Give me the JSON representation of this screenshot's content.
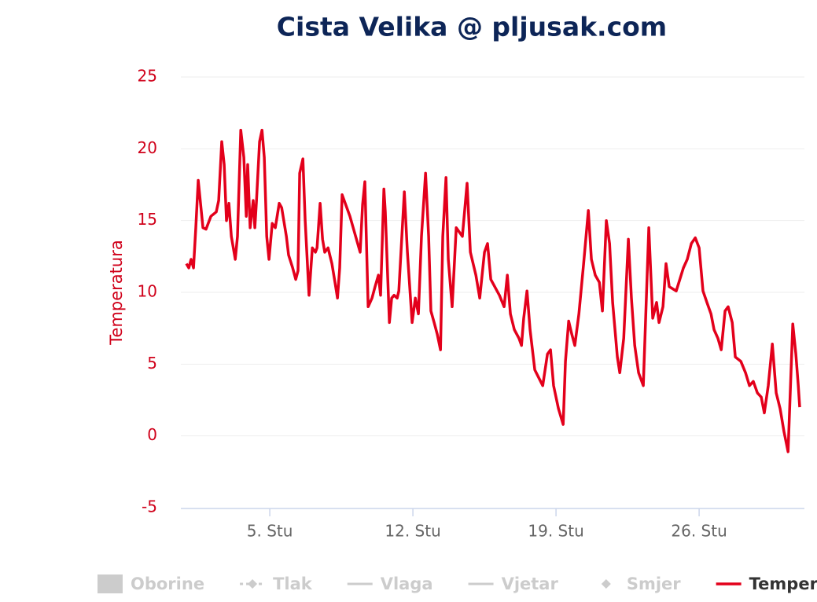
{
  "chart_data": {
    "type": "line",
    "title": "Cista Velika @ pljusak.com",
    "y_label": "Temperatura",
    "xlim": [
      0.65,
      31.15
    ],
    "xticks": [
      {
        "value": 5,
        "label": "5. Stu"
      },
      {
        "value": 12,
        "label": "12. Stu"
      },
      {
        "value": 19,
        "label": "19. Stu"
      },
      {
        "value": 26,
        "label": "26. Stu"
      }
    ],
    "ylim": [
      -5,
      25
    ],
    "yticks": [
      -5,
      0,
      5,
      10,
      15,
      20,
      25
    ],
    "grid": true,
    "legend_items": [
      {
        "name": "Oborine",
        "symbol": "rect"
      },
      {
        "name": "Tlak",
        "symbol": "dash-diamond"
      },
      {
        "name": "Vlaga",
        "symbol": "line"
      },
      {
        "name": "Vjetar",
        "symbol": "line"
      },
      {
        "name": "Smjer",
        "symbol": "diamond"
      }
    ],
    "series": [
      {
        "name": "Temperatura",
        "color": "#e3001b",
        "x": [
          0.92,
          1.04,
          1.15,
          1.27,
          1.38,
          1.5,
          1.62,
          1.73,
          1.88,
          2.12,
          2.38,
          2.5,
          2.65,
          2.77,
          2.88,
          3.0,
          3.12,
          3.31,
          3.42,
          3.58,
          3.73,
          3.85,
          3.92,
          4.04,
          4.19,
          4.27,
          4.35,
          4.5,
          4.62,
          4.73,
          4.85,
          4.96,
          5.12,
          5.27,
          5.46,
          5.58,
          5.81,
          5.92,
          6.12,
          6.27,
          6.38,
          6.46,
          6.62,
          6.73,
          6.92,
          7.08,
          7.23,
          7.31,
          7.46,
          7.58,
          7.69,
          7.85,
          8.04,
          8.19,
          8.31,
          8.42,
          8.54,
          8.92,
          9.42,
          9.54,
          9.65,
          9.81,
          10.0,
          10.15,
          10.31,
          10.42,
          10.58,
          10.65,
          10.85,
          10.96,
          11.08,
          11.23,
          11.31,
          11.58,
          11.73,
          11.96,
          12.12,
          12.27,
          12.42,
          12.62,
          12.77,
          12.88,
          13.04,
          13.19,
          13.35,
          13.46,
          13.62,
          13.73,
          13.92,
          14.12,
          14.27,
          14.42,
          14.65,
          14.81,
          15.08,
          15.27,
          15.5,
          15.65,
          15.81,
          16.23,
          16.46,
          16.62,
          16.77,
          16.96,
          17.19,
          17.31,
          17.42,
          17.58,
          17.73,
          17.96,
          18.35,
          18.58,
          18.73,
          18.88,
          19.12,
          19.35,
          19.46,
          19.62,
          19.77,
          19.92,
          20.12,
          20.35,
          20.58,
          20.73,
          20.92,
          21.12,
          21.27,
          21.46,
          21.62,
          21.77,
          22.0,
          22.12,
          22.31,
          22.54,
          22.69,
          22.85,
          23.04,
          23.27,
          23.54,
          23.73,
          23.92,
          24.04,
          24.23,
          24.38,
          24.54,
          24.88,
          25.23,
          25.42,
          25.62,
          25.81,
          26.0,
          26.19,
          26.38,
          26.58,
          26.73,
          26.92,
          27.08,
          27.27,
          27.42,
          27.62,
          27.77,
          28.04,
          28.27,
          28.46,
          28.65,
          28.85,
          29.04,
          29.19,
          29.38,
          29.58,
          29.77,
          29.96,
          30.15,
          30.35,
          30.58,
          30.73,
          30.85,
          30.92
        ],
        "values": [
          12.0,
          11.7,
          12.3,
          11.7,
          14.5,
          17.8,
          16.1,
          14.5,
          14.4,
          15.3,
          15.6,
          16.4,
          20.5,
          18.9,
          15.0,
          16.2,
          13.9,
          12.3,
          13.9,
          21.3,
          19.4,
          15.3,
          18.9,
          14.5,
          16.4,
          14.5,
          16.4,
          20.5,
          21.3,
          19.4,
          13.9,
          12.3,
          14.8,
          14.5,
          16.2,
          15.9,
          13.9,
          12.6,
          11.7,
          10.9,
          11.5,
          18.3,
          19.3,
          15.0,
          9.8,
          13.1,
          12.8,
          13.1,
          16.2,
          13.7,
          12.8,
          13.1,
          12.0,
          10.7,
          9.6,
          11.7,
          16.8,
          15.3,
          12.8,
          16.1,
          17.7,
          9.0,
          9.6,
          10.4,
          11.2,
          9.8,
          17.2,
          15.6,
          7.9,
          9.6,
          9.8,
          9.6,
          10.1,
          17.0,
          12.8,
          7.9,
          9.6,
          8.5,
          13.9,
          18.3,
          13.9,
          8.7,
          7.9,
          7.1,
          6.0,
          13.9,
          18.0,
          12.3,
          9.0,
          14.5,
          14.2,
          13.9,
          17.6,
          12.8,
          11.2,
          9.6,
          12.8,
          13.4,
          10.9,
          9.8,
          9.0,
          11.2,
          8.5,
          7.4,
          6.8,
          6.3,
          8.2,
          10.1,
          7.4,
          4.6,
          3.5,
          5.7,
          6.0,
          3.5,
          1.9,
          0.8,
          5.2,
          8.0,
          7.1,
          6.3,
          8.5,
          12.0,
          15.7,
          12.3,
          11.2,
          10.7,
          8.7,
          15.0,
          13.4,
          9.3,
          5.5,
          4.4,
          6.8,
          13.7,
          9.6,
          6.3,
          4.4,
          3.5,
          14.5,
          8.2,
          9.3,
          7.9,
          9.0,
          12.0,
          10.4,
          10.1,
          11.7,
          12.3,
          13.4,
          13.8,
          13.1,
          10.1,
          9.3,
          8.5,
          7.4,
          6.8,
          6.0,
          8.7,
          9.0,
          7.9,
          5.5,
          5.2,
          4.4,
          3.5,
          3.8,
          3.0,
          2.7,
          1.6,
          3.5,
          6.4,
          3.0,
          1.9,
          0.3,
          -1.1,
          7.8,
          5.7,
          3.5,
          2.0
        ]
      }
    ]
  }
}
